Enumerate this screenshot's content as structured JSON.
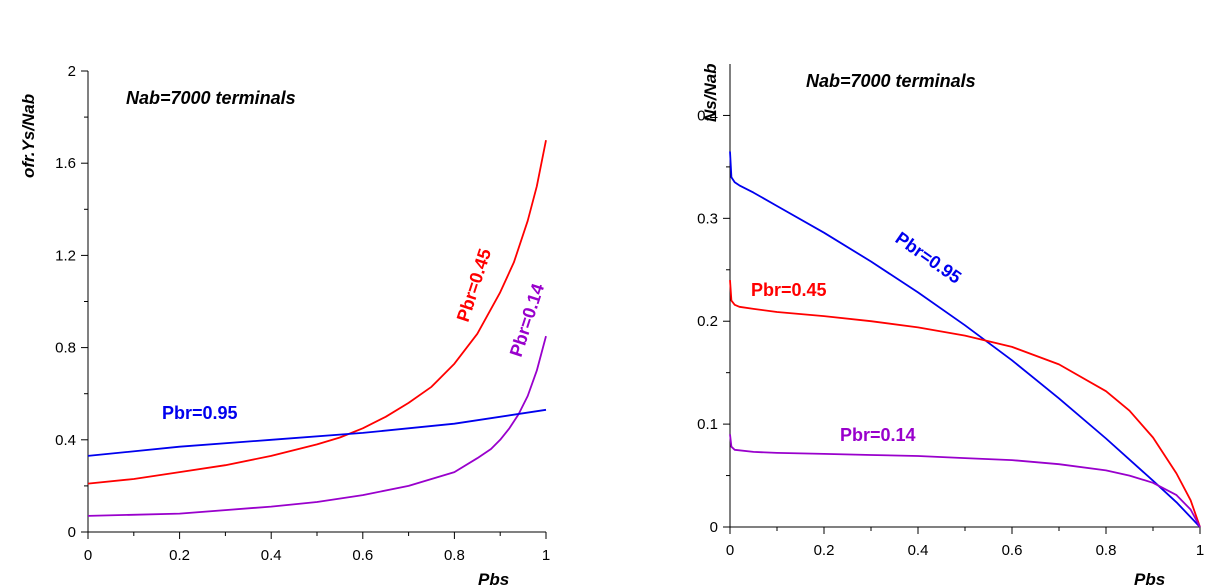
{
  "chart_data": [
    {
      "type": "line",
      "xlabel": "Pbs",
      "ylabel": "ofr.Ys/Nab",
      "annotation": "Nab=7000 terminals",
      "xlim": [
        0,
        1
      ],
      "ylim": [
        0,
        2
      ],
      "xticks": [
        0,
        0.2,
        0.4,
        0.6,
        0.8,
        1
      ],
      "xtick_labels": [
        "0",
        "0.2",
        "0.4",
        "0.6",
        "0.8",
        "1"
      ],
      "yticks": [
        0,
        0.4,
        0.8,
        1.2,
        1.6,
        2
      ],
      "ytick_labels": [
        "0",
        "0.4",
        "0.8",
        "1.2",
        "1.6",
        "2"
      ],
      "grid": false,
      "series": [
        {
          "name": "Pbr=0.45",
          "color": "#ff0000",
          "x": [
            0,
            0.1,
            0.2,
            0.3,
            0.4,
            0.5,
            0.55,
            0.6,
            0.65,
            0.7,
            0.75,
            0.8,
            0.85,
            0.9,
            0.93,
            0.96,
            0.98,
            1.0
          ],
          "y": [
            0.21,
            0.23,
            0.26,
            0.29,
            0.33,
            0.38,
            0.41,
            0.45,
            0.5,
            0.56,
            0.63,
            0.73,
            0.86,
            1.04,
            1.17,
            1.35,
            1.5,
            1.7
          ]
        },
        {
          "name": "Pbr=0.14",
          "color": "#9900cc",
          "x": [
            0,
            0.2,
            0.4,
            0.5,
            0.6,
            0.7,
            0.75,
            0.8,
            0.85,
            0.88,
            0.9,
            0.92,
            0.94,
            0.96,
            0.98,
            1.0
          ],
          "y": [
            0.07,
            0.08,
            0.11,
            0.13,
            0.16,
            0.2,
            0.23,
            0.26,
            0.32,
            0.36,
            0.4,
            0.45,
            0.51,
            0.59,
            0.7,
            0.85
          ]
        },
        {
          "name": "Pbr=0.95",
          "color": "#0000ee",
          "x": [
            0,
            0.2,
            0.4,
            0.6,
            0.8,
            1.0
          ],
          "y": [
            0.33,
            0.37,
            0.4,
            0.43,
            0.47,
            0.53
          ]
        }
      ]
    },
    {
      "type": "line",
      "xlabel": "Pbs",
      "ylabel": "Ns/Nab",
      "annotation": "Nab=7000 terminals",
      "xlim": [
        0,
        1
      ],
      "ylim": [
        0,
        0.45
      ],
      "xticks": [
        0,
        0.2,
        0.4,
        0.6,
        0.8,
        1
      ],
      "xtick_labels": [
        "0",
        "0.2",
        "0.4",
        "0.6",
        "0.8",
        "1"
      ],
      "yticks": [
        0,
        0.1,
        0.2,
        0.3,
        0.4
      ],
      "ytick_labels": [
        "0",
        "0.1",
        "0.2",
        "0.3",
        "0.4"
      ],
      "grid": false,
      "series": [
        {
          "name": "Pbr=0.95",
          "color": "#0000ee",
          "x": [
            0,
            0.003,
            0.01,
            0.02,
            0.05,
            0.1,
            0.2,
            0.3,
            0.4,
            0.5,
            0.6,
            0.7,
            0.8,
            0.9,
            0.95,
            1.0
          ],
          "y": [
            0.365,
            0.34,
            0.335,
            0.332,
            0.325,
            0.312,
            0.286,
            0.258,
            0.228,
            0.196,
            0.162,
            0.125,
            0.086,
            0.045,
            0.024,
            0.0
          ]
        },
        {
          "name": "Pbr=0.45",
          "color": "#ff0000",
          "x": [
            0,
            0.003,
            0.01,
            0.02,
            0.05,
            0.1,
            0.2,
            0.3,
            0.4,
            0.5,
            0.6,
            0.7,
            0.8,
            0.85,
            0.9,
            0.95,
            0.98,
            1.0
          ],
          "y": [
            0.24,
            0.22,
            0.216,
            0.214,
            0.212,
            0.209,
            0.205,
            0.2,
            0.194,
            0.186,
            0.175,
            0.158,
            0.132,
            0.113,
            0.087,
            0.052,
            0.026,
            0.0
          ]
        },
        {
          "name": "Pbr=0.14",
          "color": "#9900cc",
          "x": [
            0,
            0.003,
            0.01,
            0.05,
            0.1,
            0.2,
            0.3,
            0.4,
            0.5,
            0.6,
            0.7,
            0.8,
            0.85,
            0.9,
            0.95,
            0.98,
            1.0
          ],
          "y": [
            0.09,
            0.078,
            0.075,
            0.073,
            0.072,
            0.071,
            0.07,
            0.069,
            0.067,
            0.065,
            0.061,
            0.055,
            0.05,
            0.043,
            0.031,
            0.017,
            0.0
          ]
        }
      ]
    }
  ]
}
